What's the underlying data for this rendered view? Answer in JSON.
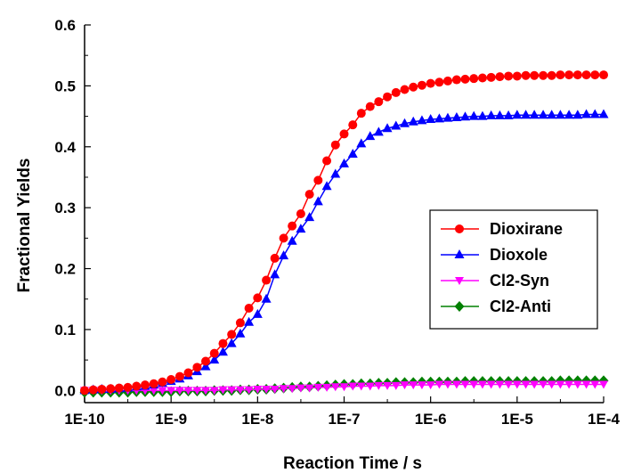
{
  "chart_data": {
    "type": "line",
    "xlabel": "Reaction Time / s",
    "ylabel": "Fractional Yields",
    "x_scale": "log",
    "xlim": [
      1e-10,
      0.0001
    ],
    "ylim": [
      -0.02,
      0.6
    ],
    "x_ticks": [
      1e-10,
      1e-09,
      1e-08,
      1e-07,
      1e-06,
      1e-05,
      0.0001
    ],
    "x_tick_labels": [
      "1E-10",
      "1E-9",
      "1E-8",
      "1E-7",
      "1E-6",
      "1E-5",
      "1E-4"
    ],
    "y_ticks": [
      0.0,
      0.1,
      0.2,
      0.3,
      0.4,
      0.5,
      0.6
    ],
    "y_tick_labels": [
      "0.0",
      "0.1",
      "0.2",
      "0.3",
      "0.4",
      "0.5",
      "0.6"
    ],
    "legend_position": "right",
    "series": [
      {
        "name": "Dioxirane",
        "color": "#ff0000",
        "marker": "circle",
        "x": [
          1e-10,
          1.26e-10,
          1.58e-10,
          2e-10,
          2.51e-10,
          3.16e-10,
          3.98e-10,
          5.01e-10,
          6.31e-10,
          7.94e-10,
          1e-09,
          1.26e-09,
          1.58e-09,
          2e-09,
          2.51e-09,
          3.16e-09,
          3.98e-09,
          5.01e-09,
          6.31e-09,
          7.94e-09,
          1e-08,
          1.26e-08,
          1.58e-08,
          2e-08,
          2.51e-08,
          3.16e-08,
          3.98e-08,
          5.01e-08,
          6.31e-08,
          7.94e-08,
          1e-07,
          1.26e-07,
          1.58e-07,
          2e-07,
          2.51e-07,
          3.16e-07,
          3.98e-07,
          5.01e-07,
          6.31e-07,
          7.94e-07,
          1e-06,
          1.26e-06,
          1.58e-06,
          2e-06,
          2.51e-06,
          3.16e-06,
          3.98e-06,
          5.01e-06,
          6.31e-06,
          7.94e-06,
          1e-05,
          1.26e-05,
          1.58e-05,
          2e-05,
          2.51e-05,
          3.16e-05,
          3.98e-05,
          5.01e-05,
          6.31e-05,
          7.94e-05,
          0.0001
        ],
        "y": [
          0.0,
          0.001,
          0.002,
          0.003,
          0.004,
          0.005,
          0.007,
          0.009,
          0.011,
          0.014,
          0.018,
          0.023,
          0.029,
          0.038,
          0.048,
          0.061,
          0.077,
          0.092,
          0.111,
          0.135,
          0.152,
          0.181,
          0.217,
          0.25,
          0.27,
          0.29,
          0.322,
          0.345,
          0.377,
          0.403,
          0.421,
          0.436,
          0.455,
          0.466,
          0.474,
          0.482,
          0.489,
          0.494,
          0.498,
          0.501,
          0.504,
          0.506,
          0.508,
          0.51,
          0.511,
          0.512,
          0.513,
          0.514,
          0.515,
          0.516,
          0.516,
          0.517,
          0.517,
          0.517,
          0.517,
          0.518,
          0.518,
          0.518,
          0.518,
          0.518,
          0.518
        ]
      },
      {
        "name": "Dioxole",
        "color": "#0000ff",
        "marker": "triangle-up",
        "x": [
          1e-10,
          1.26e-10,
          1.58e-10,
          2e-10,
          2.51e-10,
          3.16e-10,
          3.98e-10,
          5.01e-10,
          6.31e-10,
          7.94e-10,
          1e-09,
          1.26e-09,
          1.58e-09,
          2e-09,
          2.51e-09,
          3.16e-09,
          3.98e-09,
          5.01e-09,
          6.31e-09,
          7.94e-09,
          1e-08,
          1.26e-08,
          1.58e-08,
          2e-08,
          2.51e-08,
          3.16e-08,
          3.98e-08,
          5.01e-08,
          6.31e-08,
          7.94e-08,
          1e-07,
          1.26e-07,
          1.58e-07,
          2e-07,
          2.51e-07,
          3.16e-07,
          3.98e-07,
          5.01e-07,
          6.31e-07,
          7.94e-07,
          1e-06,
          1.26e-06,
          1.58e-06,
          2e-06,
          2.51e-06,
          3.16e-06,
          3.98e-06,
          5.01e-06,
          6.31e-06,
          7.94e-06,
          1e-05,
          1.26e-05,
          1.58e-05,
          2e-05,
          2.51e-05,
          3.16e-05,
          3.98e-05,
          5.01e-05,
          6.31e-05,
          7.94e-05,
          0.0001
        ],
        "y": [
          0.0,
          0.001,
          0.002,
          0.002,
          0.003,
          0.004,
          0.006,
          0.007,
          0.009,
          0.012,
          0.015,
          0.019,
          0.024,
          0.031,
          0.039,
          0.05,
          0.063,
          0.077,
          0.093,
          0.112,
          0.125,
          0.15,
          0.19,
          0.221,
          0.245,
          0.265,
          0.284,
          0.31,
          0.335,
          0.355,
          0.372,
          0.388,
          0.405,
          0.417,
          0.424,
          0.43,
          0.434,
          0.438,
          0.441,
          0.443,
          0.445,
          0.446,
          0.447,
          0.448,
          0.449,
          0.45,
          0.45,
          0.451,
          0.451,
          0.451,
          0.452,
          0.452,
          0.452,
          0.452,
          0.452,
          0.452,
          0.452,
          0.452,
          0.453,
          0.453,
          0.453
        ]
      },
      {
        "name": "Cl2-Syn",
        "color": "#ff00ff",
        "marker": "triangle-down",
        "x": [
          1e-10,
          1.26e-10,
          1.58e-10,
          2e-10,
          2.51e-10,
          3.16e-10,
          3.98e-10,
          5.01e-10,
          6.31e-10,
          7.94e-10,
          1e-09,
          1.26e-09,
          1.58e-09,
          2e-09,
          2.51e-09,
          3.16e-09,
          3.98e-09,
          5.01e-09,
          6.31e-09,
          7.94e-09,
          1e-08,
          1.26e-08,
          1.58e-08,
          2e-08,
          2.51e-08,
          3.16e-08,
          3.98e-08,
          5.01e-08,
          6.31e-08,
          7.94e-08,
          1e-07,
          1.26e-07,
          1.58e-07,
          2e-07,
          2.51e-07,
          3.16e-07,
          3.98e-07,
          5.01e-07,
          6.31e-07,
          7.94e-07,
          1e-06,
          1.26e-06,
          1.58e-06,
          2e-06,
          2.51e-06,
          3.16e-06,
          3.98e-06,
          5.01e-06,
          6.31e-06,
          7.94e-06,
          1e-05,
          1.26e-05,
          1.58e-05,
          2e-05,
          2.51e-05,
          3.16e-05,
          3.98e-05,
          5.01e-05,
          6.31e-05,
          7.94e-05,
          0.0001
        ],
        "y": [
          0.0,
          0.0,
          0.0,
          0.0,
          0.0,
          0.0,
          0.0,
          0.0,
          0.0,
          0.0,
          0.0,
          0.0,
          0.0,
          0.0,
          0.0,
          0.0,
          0.001,
          0.001,
          0.001,
          0.001,
          0.002,
          0.002,
          0.002,
          0.003,
          0.003,
          0.004,
          0.004,
          0.005,
          0.005,
          0.006,
          0.006,
          0.007,
          0.007,
          0.007,
          0.008,
          0.008,
          0.008,
          0.009,
          0.009,
          0.009,
          0.009,
          0.01,
          0.01,
          0.01,
          0.01,
          0.01,
          0.01,
          0.01,
          0.01,
          0.01,
          0.01,
          0.01,
          0.01,
          0.01,
          0.01,
          0.01,
          0.01,
          0.01,
          0.01,
          0.01,
          0.01
        ]
      },
      {
        "name": "Cl2-Anti",
        "color": "#008000",
        "marker": "diamond",
        "x": [
          1e-10,
          1.26e-10,
          1.58e-10,
          2e-10,
          2.51e-10,
          3.16e-10,
          3.98e-10,
          5.01e-10,
          6.31e-10,
          7.94e-10,
          1e-09,
          1.26e-09,
          1.58e-09,
          2e-09,
          2.51e-09,
          3.16e-09,
          3.98e-09,
          5.01e-09,
          6.31e-09,
          7.94e-09,
          1e-08,
          1.26e-08,
          1.58e-08,
          2e-08,
          2.51e-08,
          3.16e-08,
          3.98e-08,
          5.01e-08,
          6.31e-08,
          7.94e-08,
          1e-07,
          1.26e-07,
          1.58e-07,
          2e-07,
          2.51e-07,
          3.16e-07,
          3.98e-07,
          5.01e-07,
          6.31e-07,
          7.94e-07,
          1e-06,
          1.26e-06,
          1.58e-06,
          2e-06,
          2.51e-06,
          3.16e-06,
          3.98e-06,
          5.01e-06,
          6.31e-06,
          7.94e-06,
          1e-05,
          1.26e-05,
          1.58e-05,
          2e-05,
          2.51e-05,
          3.16e-05,
          3.98e-05,
          5.01e-05,
          6.31e-05,
          7.94e-05,
          0.0001
        ],
        "y": [
          -0.003,
          -0.003,
          -0.003,
          -0.003,
          -0.003,
          -0.003,
          -0.002,
          -0.002,
          -0.002,
          -0.002,
          -0.002,
          -0.001,
          -0.001,
          -0.001,
          -0.001,
          0.0,
          0.0,
          0.0,
          0.001,
          0.001,
          0.002,
          0.002,
          0.003,
          0.004,
          0.005,
          0.006,
          0.006,
          0.007,
          0.008,
          0.009,
          0.01,
          0.01,
          0.011,
          0.011,
          0.012,
          0.012,
          0.013,
          0.013,
          0.013,
          0.014,
          0.014,
          0.014,
          0.014,
          0.014,
          0.015,
          0.015,
          0.015,
          0.015,
          0.015,
          0.015,
          0.015,
          0.015,
          0.015,
          0.015,
          0.015,
          0.016,
          0.016,
          0.016,
          0.016,
          0.016,
          0.016
        ]
      }
    ]
  }
}
